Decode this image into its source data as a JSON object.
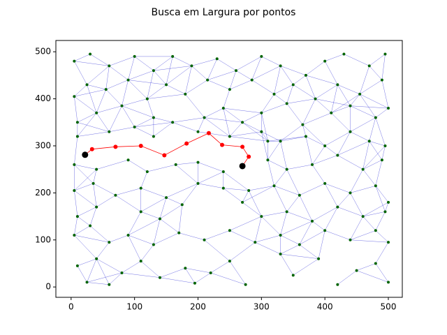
{
  "chart_data": {
    "type": "graph",
    "title": "Busca em Largura por pontos",
    "xlim": [
      -24,
      522
    ],
    "ylim": [
      -22,
      524
    ],
    "xticks": [
      0,
      100,
      200,
      300,
      400,
      500
    ],
    "yticks": [
      0,
      100,
      200,
      300,
      400,
      500
    ],
    "edge_color": "#0000cc",
    "nodes": {
      "color": "#006400",
      "x": [
        5,
        30,
        60,
        100,
        130,
        160,
        190,
        230,
        260,
        300,
        330,
        370,
        400,
        430,
        470,
        495,
        5,
        25,
        55,
        90,
        120,
        150,
        180,
        215,
        250,
        285,
        320,
        350,
        385,
        420,
        455,
        490,
        10,
        40,
        80,
        130,
        160,
        210,
        240,
        270,
        300,
        340,
        365,
        410,
        440,
        480,
        500,
        10,
        60,
        100,
        130,
        200,
        250,
        300,
        330,
        370,
        400,
        440,
        470,
        495,
        5,
        40,
        90,
        120,
        165,
        200,
        240,
        310,
        340,
        380,
        420,
        460,
        490,
        5,
        35,
        70,
        110,
        150,
        200,
        240,
        280,
        320,
        360,
        400,
        440,
        480,
        500,
        10,
        40,
        110,
        140,
        175,
        270,
        300,
        340,
        380,
        420,
        460,
        495,
        5,
        30,
        60,
        90,
        130,
        170,
        210,
        250,
        290,
        330,
        360,
        400,
        440,
        480,
        500,
        10,
        40,
        80,
        110,
        140,
        180,
        220,
        250,
        275,
        310,
        350,
        390,
        420,
        450,
        480,
        500,
        25,
        60,
        195,
        330
      ],
      "y": [
        480,
        495,
        470,
        490,
        460,
        490,
        470,
        485,
        460,
        490,
        470,
        450,
        480,
        495,
        470,
        495,
        405,
        430,
        420,
        440,
        400,
        430,
        410,
        440,
        420,
        440,
        410,
        430,
        400,
        430,
        410,
        440,
        350,
        370,
        385,
        360,
        350,
        360,
        380,
        350,
        370,
        390,
        345,
        370,
        385,
        360,
        380,
        320,
        330,
        340,
        320,
        330,
        320,
        330,
        310,
        320,
        300,
        330,
        310,
        300,
        260,
        250,
        270,
        245,
        260,
        265,
        245,
        270,
        250,
        260,
        280,
        250,
        270,
        205,
        220,
        195,
        210,
        190,
        220,
        210,
        205,
        215,
        195,
        220,
        200,
        215,
        180,
        150,
        170,
        160,
        145,
        175,
        180,
        150,
        160,
        140,
        170,
        150,
        160,
        110,
        130,
        95,
        110,
        90,
        115,
        100,
        120,
        95,
        110,
        90,
        120,
        100,
        120,
        95,
        45,
        60,
        30,
        55,
        20,
        40,
        30,
        55,
        5,
        310,
        25,
        60,
        5,
        35,
        50,
        10,
        10,
        5,
        8,
        70
      ]
    },
    "path": {
      "color": "#ff0000",
      "x": [
        22,
        33,
        70,
        110,
        147,
        182,
        217,
        238,
        270,
        280,
        270
      ],
      "y": [
        281,
        293,
        298,
        300,
        280,
        305,
        327,
        302,
        298,
        277,
        257
      ]
    },
    "endpoints": {
      "color": "#000000",
      "x": [
        22,
        270
      ],
      "y": [
        281,
        257
      ]
    }
  }
}
